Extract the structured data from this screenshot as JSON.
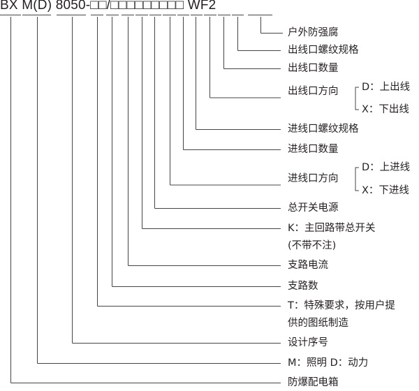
{
  "model_code": "BX M(D) 8050-□□/□□□□□□□□□ WF2",
  "labels": [
    {
      "key": "anticorrosion",
      "lines": [
        "户外防强腐"
      ]
    },
    {
      "key": "outlet-thread",
      "lines": [
        "出线口螺纹规格"
      ]
    },
    {
      "key": "outlet-count",
      "lines": [
        "出线口数量"
      ]
    },
    {
      "key": "outlet-direction",
      "lines": [
        "出线口方向"
      ],
      "options": [
        "D：上出线",
        "X：下出线"
      ]
    },
    {
      "key": "inlet-thread",
      "lines": [
        "进线口螺纹规格"
      ]
    },
    {
      "key": "inlet-count",
      "lines": [
        "进线口数量"
      ]
    },
    {
      "key": "inlet-direction",
      "lines": [
        "进线口方向"
      ],
      "options": [
        "D：上进线",
        "X：下进线"
      ]
    },
    {
      "key": "main-switch-power",
      "lines": [
        "总开关电源"
      ]
    },
    {
      "key": "main-switch",
      "lines": [
        "K：主回路带总开关",
        "(不带不注)"
      ]
    },
    {
      "key": "branch-current",
      "lines": [
        "支路电流"
      ]
    },
    {
      "key": "branch-count",
      "lines": [
        "支路数"
      ]
    },
    {
      "key": "special",
      "lines": [
        "T：特殊要求，按用户提",
        "供的图纸制造"
      ]
    },
    {
      "key": "design-serial",
      "lines": [
        "设计序号"
      ]
    },
    {
      "key": "usage",
      "lines": [
        "M：照明 D：动力"
      ]
    },
    {
      "key": "explosion-proof-box",
      "lines": [
        "防爆配电箱"
      ]
    }
  ]
}
